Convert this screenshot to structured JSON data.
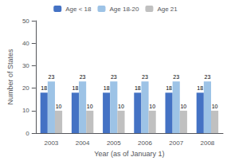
{
  "chart_data": {
    "type": "bar",
    "categories": [
      "2003",
      "2004",
      "2005",
      "2006",
      "2007",
      "2008"
    ],
    "series": [
      {
        "name": "Age < 18",
        "color": "#4472C4",
        "values": [
          18,
          18,
          18,
          18,
          18,
          18
        ]
      },
      {
        "name": "Age 18-20",
        "color": "#9DC3E6",
        "values": [
          23,
          23,
          23,
          23,
          23,
          23
        ]
      },
      {
        "name": "Age 21",
        "color": "#C0C0C0",
        "values": [
          10,
          10,
          10,
          10,
          10,
          10
        ]
      }
    ],
    "xlabel": "Year (as of January 1)",
    "ylabel": "Number of States",
    "ylim": [
      0,
      50
    ],
    "yticks": [
      0,
      10,
      20,
      30,
      40,
      50
    ],
    "data_labels": true,
    "legend": "top",
    "grid": false
  }
}
